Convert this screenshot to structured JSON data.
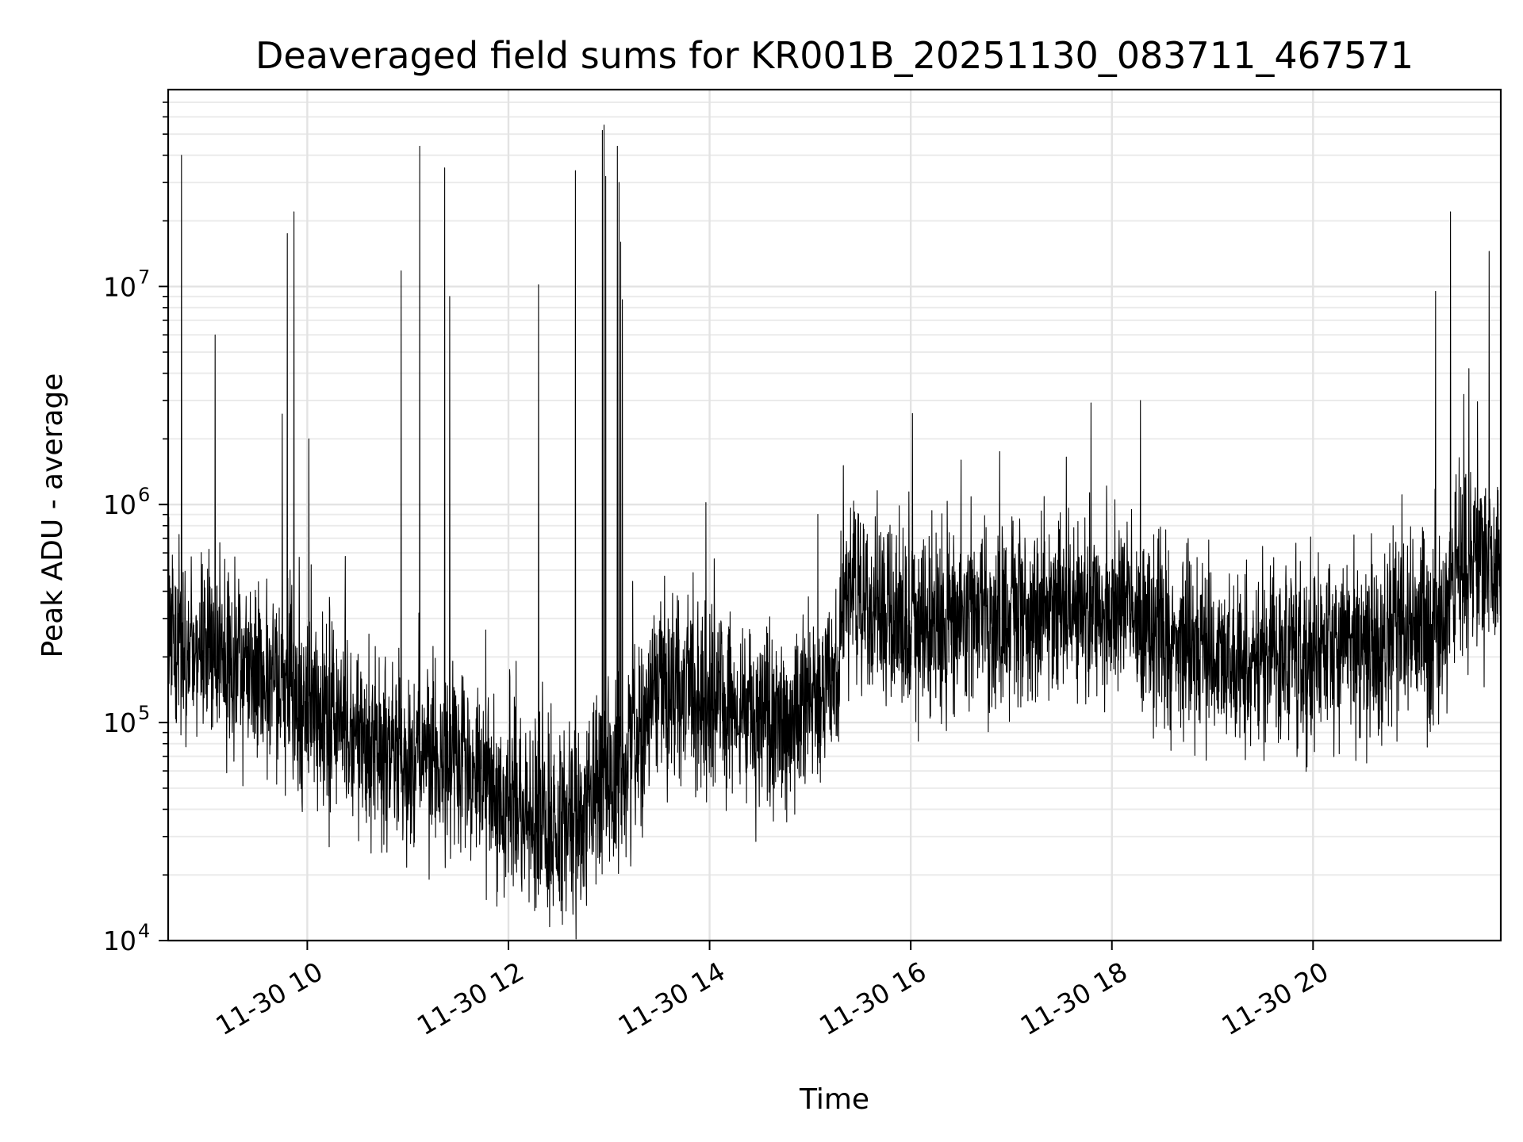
{
  "chart_data": {
    "type": "line",
    "title": "Deaveraged field sums for KR001B_20251130_083711_467571",
    "xlabel": "Time",
    "ylabel": "Peak ADU - average",
    "x_axis": {
      "kind": "time",
      "range": [
        "2025-11-30 08:37",
        "2025-11-30 21:52"
      ],
      "ticks": [
        {
          "value": "2025-11-30 10:00",
          "label": "11-30 10"
        },
        {
          "value": "2025-11-30 12:00",
          "label": "11-30 12"
        },
        {
          "value": "2025-11-30 14:00",
          "label": "11-30 14"
        },
        {
          "value": "2025-11-30 16:00",
          "label": "11-30 16"
        },
        {
          "value": "2025-11-30 18:00",
          "label": "11-30 18"
        },
        {
          "value": "2025-11-30 20:00",
          "label": "11-30 20"
        }
      ]
    },
    "y_axis": {
      "scale": "log",
      "range": [
        10000,
        80000000
      ],
      "ticks": [
        {
          "value": 10000,
          "base": "10",
          "exp": "4"
        },
        {
          "value": 100000,
          "base": "10",
          "exp": "5"
        },
        {
          "value": 1000000,
          "base": "10",
          "exp": "6"
        },
        {
          "value": 10000000,
          "base": "10",
          "exp": "7"
        }
      ]
    },
    "grid": true,
    "line_color": "#000000",
    "series": [
      {
        "trend": [
          [
            "2025-11-30 08:37",
            230000
          ],
          [
            "2025-11-30 09:00",
            220000
          ],
          [
            "2025-11-30 09:30",
            170000
          ],
          [
            "2025-11-30 09:50",
            130000
          ],
          [
            "2025-11-30 10:10",
            100000
          ],
          [
            "2025-11-30 10:30",
            85000
          ],
          [
            "2025-11-30 11:00",
            70000
          ],
          [
            "2025-11-30 11:30",
            60000
          ],
          [
            "2025-11-30 12:00",
            45000
          ],
          [
            "2025-11-30 12:20",
            35000
          ],
          [
            "2025-11-30 12:40",
            32000
          ],
          [
            "2025-11-30 12:50",
            45000
          ],
          [
            "2025-11-30 13:10",
            60000
          ],
          [
            "2025-11-30 13:30",
            150000
          ],
          [
            "2025-11-30 14:00",
            130000
          ],
          [
            "2025-11-30 14:30",
            100000
          ],
          [
            "2025-11-30 15:00",
            120000
          ],
          [
            "2025-11-30 15:15",
            150000
          ],
          [
            "2025-11-30 15:20",
            400000
          ],
          [
            "2025-11-30 16:00",
            270000
          ],
          [
            "2025-11-30 17:00",
            320000
          ],
          [
            "2025-11-30 18:00",
            330000
          ],
          [
            "2025-11-30 18:25",
            300000
          ],
          [
            "2025-11-30 18:30",
            240000
          ],
          [
            "2025-11-30 19:00",
            200000
          ],
          [
            "2025-11-30 20:00",
            210000
          ],
          [
            "2025-11-30 21:00",
            230000
          ],
          [
            "2025-11-30 21:20",
            260000
          ],
          [
            "2025-11-30 21:22",
            500000
          ],
          [
            "2025-11-30 21:52",
            600000
          ]
        ],
        "spikes": [
          [
            "2025-11-30 08:45",
            40000000
          ],
          [
            "2025-11-30 09:05",
            6000000
          ],
          [
            "2025-11-30 09:45",
            2600000
          ],
          [
            "2025-11-30 09:48",
            17500000
          ],
          [
            "2025-11-30 09:52",
            22000000
          ],
          [
            "2025-11-30 10:01",
            2000000
          ],
          [
            "2025-11-30 10:56",
            11800000
          ],
          [
            "2025-11-30 11:07",
            44000000
          ],
          [
            "2025-11-30 11:22",
            35000000
          ],
          [
            "2025-11-30 11:25",
            9000000
          ],
          [
            "2025-11-30 12:18",
            10200000
          ],
          [
            "2025-11-30 12:40",
            34000000
          ],
          [
            "2025-11-30 12:56",
            52000000
          ],
          [
            "2025-11-30 12:57",
            55000000
          ],
          [
            "2025-11-30 12:58",
            32000000
          ],
          [
            "2025-11-30 13:05",
            44000000
          ],
          [
            "2025-11-30 13:06",
            30000000
          ],
          [
            "2025-11-30 13:07",
            16000000
          ],
          [
            "2025-11-30 13:08",
            8700000
          ],
          [
            "2025-11-30 16:30",
            1600000
          ],
          [
            "2025-11-30 16:53",
            1750000
          ],
          [
            "2025-11-30 18:17",
            3000000
          ],
          [
            "2025-11-30 21:13",
            9500000
          ],
          [
            "2025-11-30 21:22",
            22000000
          ],
          [
            "2025-11-30 21:30",
            3200000
          ],
          [
            "2025-11-30 21:33",
            4200000
          ],
          [
            "2025-11-30 21:45",
            14500000
          ],
          [
            "2025-11-30 21:50",
            1200000
          ]
        ]
      }
    ]
  }
}
